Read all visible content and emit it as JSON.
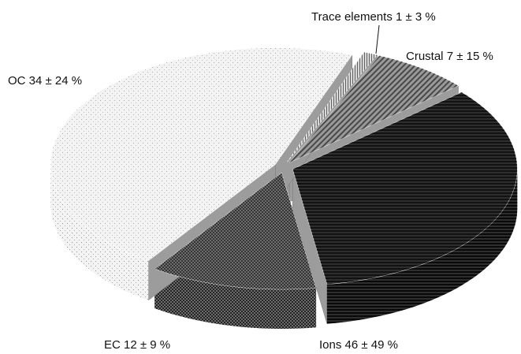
{
  "chart_data": {
    "type": "pie",
    "categories": [
      "Trace elements",
      "Crustal",
      "OC",
      "EC",
      "Ions"
    ],
    "values": [
      1,
      7,
      34,
      12,
      46
    ],
    "value_labels": [
      "1 ± 3 %",
      "7 ± 15 %",
      "34 ± 24 %",
      "12 ± 9 %",
      "46 ± 49 %"
    ],
    "colors": [
      "#d8d8d8",
      "#9a9a9a",
      "#2e2e2e",
      "#6c6c6c",
      "#f3f3f3"
    ]
  }
}
